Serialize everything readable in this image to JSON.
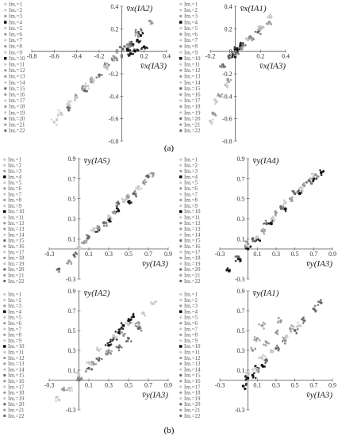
{
  "figure": {
    "subfigure_labels": [
      "(a)",
      "(b)"
    ],
    "legend_entries": [
      "Im.=1",
      "Im.=2",
      "Im.=3",
      "Im.=4",
      "Im.=5",
      "Im.=6",
      "Im.=7",
      "Im.=8",
      "Im.=9",
      "Im.=10",
      "Im.=11",
      "Im.=12",
      "Im.=13",
      "Im.=14",
      "Im.=15",
      "Im.=16",
      "Im.=17",
      "Im.=18",
      "Im.=19",
      "Im.=20",
      "Im.=21",
      "Im.=22"
    ],
    "colors": {
      "black": "#111111",
      "dark_gray": "#666666",
      "mid_gray": "#999999",
      "light_gray": "#c8c8c8",
      "axis": "#555555"
    }
  },
  "chart_data": [
    {
      "type": "scatter",
      "panel": "a-left",
      "xlabel": "v̄x(IA3)",
      "ylabel": "v̄x(IA2)",
      "xlim": [
        -0.8,
        0.4
      ],
      "ylim": [
        -0.8,
        0.4
      ],
      "x_ticks": [
        "-0.8",
        "-0.6",
        "-0.4",
        "-0.2",
        "0",
        "0.2",
        "0.4"
      ],
      "y_ticks": [
        "0.4",
        "0.2",
        "0",
        "-0.2",
        "-0.4",
        "-0.6",
        "-0.8"
      ],
      "series": [
        {
          "name": "Im.=4",
          "color": "black",
          "x": [
            0.05,
            0.1,
            0.14,
            0.17,
            0.2,
            0.12,
            0.08
          ],
          "y": [
            0.02,
            0.06,
            0.1,
            0.14,
            0.04,
            0.0,
            -0.02
          ]
        },
        {
          "name": "Im.=6",
          "color": "dark_gray",
          "x": [
            -0.48,
            -0.4,
            -0.33,
            -0.26,
            -0.2,
            -0.13,
            -0.06,
            0.01,
            0.08,
            0.15
          ],
          "y": [
            -0.5,
            -0.41,
            -0.35,
            -0.27,
            -0.21,
            -0.14,
            -0.06,
            0.02,
            0.07,
            0.17
          ]
        },
        {
          "name": "Im.=13",
          "color": "mid_gray",
          "x": [
            -0.35,
            -0.25,
            -0.15,
            -0.05,
            0.05,
            0.15,
            0.25
          ],
          "y": [
            -0.33,
            -0.26,
            -0.13,
            -0.06,
            0.06,
            0.14,
            0.27
          ]
        },
        {
          "name": "Im.=16",
          "color": "light_gray",
          "x": [
            -0.6,
            -0.54,
            -0.48,
            -0.4,
            -0.32,
            -0.25,
            -0.15
          ],
          "y": [
            -0.63,
            -0.55,
            -0.47,
            -0.41,
            -0.31,
            -0.26,
            -0.14
          ]
        }
      ]
    },
    {
      "type": "scatter",
      "panel": "a-right",
      "xlabel": "v̄x(IA3)",
      "ylabel": "v̄x(IA1)",
      "xlim": [
        -0.2,
        0.4
      ],
      "ylim": [
        -0.8,
        0.4
      ],
      "x_ticks": [
        "-0.2",
        "0",
        "0.2",
        "0.4"
      ],
      "y_ticks": [
        "0.4",
        "0.2",
        "0",
        "-0.2",
        "-0.4",
        "-0.6",
        "-0.8"
      ],
      "series": [
        {
          "name": "Im.=15",
          "color": "black",
          "x": [
            -0.02,
            0.0,
            0.02,
            0.04,
            0.06
          ],
          "y": [
            -0.03,
            0.01,
            0.02,
            0.05,
            0.05
          ]
        },
        {
          "name": "Im.=10",
          "color": "dark_gray",
          "x": [
            -0.1,
            -0.05,
            0.0,
            0.06,
            0.12,
            0.18
          ],
          "y": [
            -0.12,
            -0.06,
            0.0,
            0.05,
            0.13,
            0.17
          ]
        },
        {
          "name": "Im.=20",
          "color": "mid_gray",
          "x": [
            -0.18,
            -0.12,
            -0.06,
            0.05,
            0.12,
            0.2,
            0.27
          ],
          "y": [
            -0.55,
            -0.4,
            -0.25,
            0.02,
            0.12,
            0.2,
            0.26
          ]
        },
        {
          "name": "Im.=2",
          "color": "light_gray",
          "x": [
            -0.2,
            -0.15,
            -0.08,
            0.1,
            0.2,
            0.28
          ],
          "y": [
            -0.62,
            -0.45,
            -0.3,
            0.1,
            0.22,
            0.3
          ]
        }
      ]
    },
    {
      "type": "scatter",
      "panel": "b-top-left",
      "xlabel": "v̄y(IA3)",
      "ylabel": "v̄y(IA5)",
      "xlim": [
        -0.3,
        0.9
      ],
      "ylim": [
        -0.3,
        0.9
      ],
      "x_ticks": [
        "-0.3",
        "0.1",
        "0.3",
        "0.5",
        "0.7",
        "0.9"
      ],
      "y_ticks": [
        "0.9",
        "0.7",
        "0.5",
        "0.3",
        "0.1",
        "-0.3"
      ],
      "series": [
        {
          "name": "Im.=9",
          "color": "black",
          "x": [
            0.2,
            0.3,
            0.4,
            0.5
          ],
          "y": [
            0.19,
            0.29,
            0.38,
            0.47
          ]
        },
        {
          "name": "Im.=7",
          "color": "dark_gray",
          "x": [
            -0.2,
            -0.05,
            0.1,
            0.25,
            0.4,
            0.55,
            0.7
          ],
          "y": [
            -0.2,
            -0.06,
            0.12,
            0.26,
            0.45,
            0.55,
            0.72
          ]
        },
        {
          "name": "Im.=12",
          "color": "mid_gray",
          "x": [
            -0.1,
            0.05,
            0.2,
            0.35,
            0.5,
            0.65,
            0.75
          ],
          "y": [
            -0.12,
            0.06,
            0.22,
            0.36,
            0.52,
            0.66,
            0.75
          ]
        },
        {
          "name": "Im.=19",
          "color": "light_gray",
          "x": [
            0.0,
            0.15,
            0.3,
            0.45,
            0.6
          ],
          "y": [
            0.02,
            0.18,
            0.33,
            0.47,
            0.62
          ]
        }
      ]
    },
    {
      "type": "scatter",
      "panel": "b-top-right",
      "xlabel": "v̄y(IA3)",
      "ylabel": "v̄y(IA4)",
      "xlim": [
        -0.3,
        0.9
      ],
      "ylim": [
        -0.3,
        0.9
      ],
      "x_ticks": [
        "-0.3",
        "0.1",
        "0.3",
        "0.5",
        "0.7",
        "0.9"
      ],
      "y_ticks": [
        "0.9",
        "0.7",
        "0.5",
        "0.3",
        "0.1",
        "-0.3"
      ],
      "series": [
        {
          "name": "Im.=20",
          "color": "black",
          "x": [
            -0.2,
            -0.1,
            0.0,
            0.1,
            0.25,
            0.4,
            0.55,
            0.7,
            0.78
          ],
          "y": [
            -0.22,
            -0.1,
            0.0,
            0.1,
            0.25,
            0.4,
            0.55,
            0.7,
            0.76
          ]
        },
        {
          "name": "Im.=8",
          "color": "dark_gray",
          "x": [
            -0.1,
            0.05,
            0.2,
            0.35,
            0.5,
            0.65
          ],
          "y": [
            -0.08,
            0.1,
            0.25,
            0.42,
            0.55,
            0.68
          ]
        },
        {
          "name": "Im.=13",
          "color": "mid_gray",
          "x": [
            0.0,
            0.15,
            0.3,
            0.45,
            0.6,
            0.72
          ],
          "y": [
            0.05,
            0.18,
            0.36,
            0.5,
            0.63,
            0.74
          ]
        },
        {
          "name": "Im.=3",
          "color": "light_gray",
          "x": [
            0.1,
            0.25,
            0.4,
            0.55,
            0.7
          ],
          "y": [
            0.12,
            0.3,
            0.46,
            0.6,
            0.72
          ]
        }
      ]
    },
    {
      "type": "scatter",
      "panel": "b-bottom-left",
      "xlabel": "v̄y(IA3)",
      "ylabel": "v̄y(IA2)",
      "xlim": [
        -0.3,
        0.9
      ],
      "ylim": [
        -0.3,
        0.9
      ],
      "x_ticks": [
        "-0.3",
        "0.1",
        "0.3",
        "0.5",
        "0.7",
        "0.9"
      ],
      "y_ticks": [
        "0.9",
        "0.7",
        "0.5",
        "0.3",
        "0.1",
        "-0.3"
      ],
      "series": [
        {
          "name": "Im.=4",
          "color": "black",
          "x": [
            0.3,
            0.35,
            0.4,
            0.45,
            0.5,
            0.55
          ],
          "y": [
            0.35,
            0.42,
            0.48,
            0.55,
            0.6,
            0.64
          ]
        },
        {
          "name": "Im.=10",
          "color": "dark_gray",
          "x": [
            0.0,
            0.1,
            0.2,
            0.3,
            0.4,
            0.5,
            0.6
          ],
          "y": [
            0.0,
            0.12,
            0.2,
            0.28,
            0.33,
            0.42,
            0.52
          ]
        },
        {
          "name": "Im.=11",
          "color": "mid_gray",
          "x": [
            -0.15,
            0.0,
            0.15,
            0.3,
            0.45,
            0.6
          ],
          "y": [
            -0.1,
            0.03,
            0.16,
            0.3,
            0.45,
            0.58
          ]
        },
        {
          "name": "Im.=17",
          "color": "light_gray",
          "x": [
            -0.2,
            -0.1,
            0.0,
            0.1,
            0.2,
            0.35,
            0.5,
            0.65,
            0.75
          ],
          "y": [
            -0.2,
            -0.08,
            0.05,
            0.18,
            0.3,
            0.45,
            0.56,
            0.68,
            0.77
          ]
        }
      ]
    },
    {
      "type": "scatter",
      "panel": "b-bottom-right",
      "xlabel": "v̄y(IA3)",
      "ylabel": "v̄y(IA1)",
      "xlim": [
        -0.3,
        0.9
      ],
      "ylim": [
        -0.3,
        0.9
      ],
      "x_ticks": [
        "-0.3",
        "0.1",
        "0.3",
        "0.5",
        "0.7",
        "0.9"
      ],
      "y_ticks": [
        "0.9",
        "0.7",
        "0.5",
        "0.3",
        "0.1",
        "-0.3"
      ],
      "series": [
        {
          "name": "Im.=15",
          "color": "black",
          "x": [
            -0.05,
            0.0,
            0.05,
            0.1,
            0.15
          ],
          "y": [
            -0.06,
            0.02,
            0.05,
            0.12,
            0.15
          ]
        },
        {
          "name": "Im.=14",
          "color": "dark_gray",
          "x": [
            0.1,
            0.2,
            0.3,
            0.4,
            0.5,
            0.6,
            0.7,
            0.78
          ],
          "y": [
            0.1,
            0.2,
            0.32,
            0.4,
            0.5,
            0.6,
            0.72,
            0.78
          ]
        },
        {
          "name": "Im.=6",
          "color": "mid_gray",
          "x": [
            0.05,
            0.1,
            0.15,
            0.2,
            0.3,
            0.35,
            0.45
          ],
          "y": [
            0.3,
            0.42,
            0.55,
            0.38,
            0.48,
            0.6,
            0.52
          ]
        },
        {
          "name": "Im.=21",
          "color": "light_gray",
          "x": [
            0.0,
            0.08,
            0.15,
            0.25,
            0.4,
            0.55
          ],
          "y": [
            0.05,
            0.12,
            0.22,
            0.3,
            0.42,
            0.55
          ]
        }
      ]
    }
  ]
}
